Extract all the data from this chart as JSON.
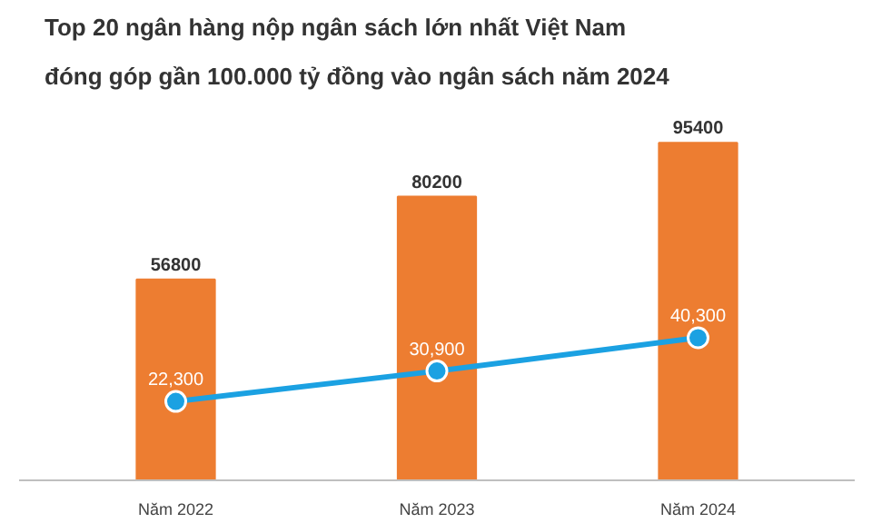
{
  "chart_data": {
    "type": "bar",
    "title": "Top 20 ngân hàng nộp ngân sách lớn nhất Việt Nam",
    "subtitle": "đóng góp gần 100.000 tỷ đồng vào ngân sách năm 2024",
    "categories": [
      "Năm 2022",
      "Năm 2023",
      "Năm 2024"
    ],
    "data_labels": true,
    "grid": false,
    "marker": "circle",
    "series": [
      {
        "color": "#ed7d31",
        "values": [
          56800,
          80200,
          95400
        ]
      },
      {
        "type": "line",
        "color": "#1ba1e2",
        "values": [
          22300,
          30900,
          40300
        ],
        "value_labels": [
          "22,300",
          "30,900",
          "40,300"
        ]
      }
    ]
  }
}
